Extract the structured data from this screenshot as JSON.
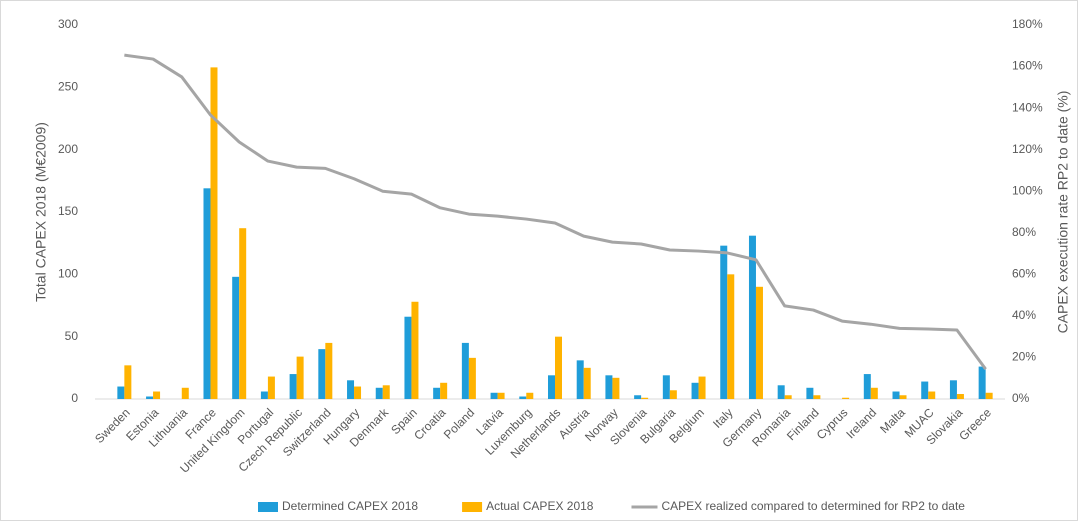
{
  "chart_data": {
    "type": "bar",
    "ylabel": "Total CAPEX 2018  (M€2009)",
    "y2label": "CAPEX execution rate RP2 to date (%)",
    "categories": [
      "Sweden",
      "Estonia",
      "Lithuania",
      "France",
      "United Kingdom",
      "Portugal",
      "Czech Republic",
      "Switzerland",
      "Hungary",
      "Denmark",
      "Spain",
      "Croatia",
      "Poland",
      "Latvia",
      "Luxemburg",
      "Netherlands",
      "Austria",
      "Norway",
      "Slovenia",
      "Bulgaria",
      "Belgium",
      "Italy",
      "Germany",
      "Romania",
      "Finland",
      "Cyprus",
      "Ireland",
      "Malta",
      "MUAC",
      "Slovakia",
      "Greece"
    ],
    "series": [
      {
        "name": "Determined CAPEX 2018",
        "color": "#1f9dd9",
        "values": [
          10,
          2,
          0,
          169,
          98,
          6,
          20,
          40,
          15,
          9,
          66,
          9,
          45,
          5,
          2,
          19,
          31,
          19,
          3,
          19,
          13,
          123,
          131,
          11,
          9,
          0,
          20,
          6,
          14,
          15,
          26
        ]
      },
      {
        "name": "Actual CAPEX 2018",
        "color": "#ffb300",
        "values": [
          27,
          6,
          9,
          266,
          137,
          18,
          34,
          45,
          10,
          11,
          78,
          13,
          33,
          5,
          5,
          50,
          25,
          17,
          1,
          7,
          18,
          100,
          90,
          3,
          3,
          1,
          9,
          3,
          6,
          4,
          5
        ]
      },
      {
        "name": "CAPEX realized compared to determined for RP2 to date",
        "color": "#a5a5a5",
        "type": "line",
        "axis": "y2",
        "values": [
          165.5,
          163.6,
          155,
          136.7,
          123.7,
          114.5,
          111.6,
          111,
          106,
          100,
          98.6,
          92,
          89,
          88,
          86.6,
          84.7,
          78.4,
          75.5,
          74.6,
          71.7,
          71.2,
          70.3,
          67,
          44.8,
          42.8,
          37.5,
          36,
          34,
          33.7,
          33.2,
          14.4
        ]
      }
    ],
    "ylim": [
      0,
      300
    ],
    "yticks": [
      0,
      50,
      100,
      150,
      200,
      250,
      300
    ],
    "y2lim": [
      0,
      180
    ],
    "y2ticks": [
      {
        "value": 0,
        "label": "0%"
      },
      {
        "value": 20,
        "label": "20%"
      },
      {
        "value": 40,
        "label": "40%"
      },
      {
        "value": 60,
        "label": "60%"
      },
      {
        "value": 80,
        "label": "80%"
      },
      {
        "value": 100,
        "label": "100%"
      },
      {
        "value": 120,
        "label": "120%"
      },
      {
        "value": 140,
        "label": "140%"
      },
      {
        "value": 160,
        "label": "160%"
      },
      {
        "value": 180,
        "label": "180%"
      }
    ],
    "grid": false,
    "legend": "bottom"
  }
}
